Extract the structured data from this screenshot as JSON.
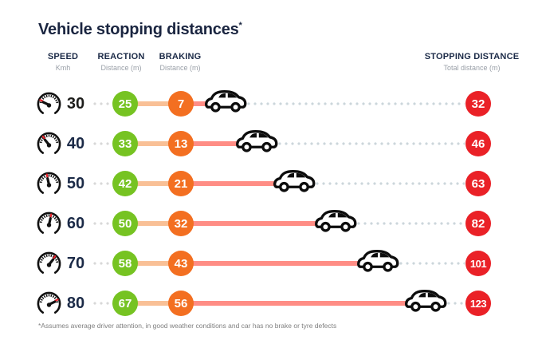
{
  "title": {
    "text": "Vehicle stopping distances",
    "asterisk": "*"
  },
  "columns": {
    "speed": {
      "label": "SPEED",
      "sub": "Kmh"
    },
    "reaction": {
      "label": "REACTION",
      "sub": "Distance (m)"
    },
    "braking": {
      "label": "BRAKING",
      "sub": "Distance (m)"
    },
    "stopping": {
      "label": "STOPPING DISTANCE",
      "sub": "Total distance (m)"
    }
  },
  "rows": [
    {
      "speed": 30,
      "reaction": 25,
      "braking": 7,
      "total": 32,
      "speed_color": "#1d1d1b"
    },
    {
      "speed": 40,
      "reaction": 33,
      "braking": 13,
      "total": 46,
      "speed_color": "#1b2a47"
    },
    {
      "speed": 50,
      "reaction": 42,
      "braking": 21,
      "total": 63,
      "speed_color": "#1b2a47"
    },
    {
      "speed": 60,
      "reaction": 50,
      "braking": 32,
      "total": 82,
      "speed_color": "#1b2a47"
    },
    {
      "speed": 70,
      "reaction": 58,
      "braking": 43,
      "total": 101,
      "speed_color": "#1b2a47"
    },
    {
      "speed": 80,
      "reaction": 67,
      "braking": 56,
      "total": 123,
      "speed_color": "#1b2a47"
    }
  ],
  "chart_data": {
    "type": "bar",
    "title": "Vehicle stopping distances*",
    "categories": [
      30,
      40,
      50,
      60,
      70,
      80
    ],
    "xlabel": "Speed (Kmh)",
    "ylabel": "Distance (m)",
    "series": [
      {
        "name": "Reaction distance (m)",
        "values": [
          25,
          33,
          42,
          50,
          58,
          67
        ]
      },
      {
        "name": "Braking distance (m)",
        "values": [
          7,
          13,
          21,
          32,
          43,
          56
        ]
      },
      {
        "name": "Stopping distance total (m)",
        "values": [
          32,
          46,
          63,
          82,
          101,
          123
        ]
      }
    ],
    "legend_position": "column-headers",
    "grid": false,
    "orientation": "horizontal"
  },
  "footnote": "*Assumes average driver attention, in good weather conditions and car has no brake or tyre defects",
  "icons": {
    "speedometer": "speedometer-icon",
    "car": "car-icon"
  },
  "colors": {
    "navy_text": "#1b2a47",
    "title_navy": "#1a2540",
    "green_badge": "#76c322",
    "orange_badge": "#f36f21",
    "red_badge": "#ea2127",
    "peach_connector": "#f9c096",
    "salmon_connector": "#ff8d85",
    "leader_dot_gray": "#d8d8d8",
    "leader_dot_blue_gray": "#ccd6db",
    "header_sub_gray": "#9aa0a8",
    "footnote_gray": "#7f7f7f",
    "gauge_red_tick": "#e8212a",
    "background": "#ffffff"
  }
}
